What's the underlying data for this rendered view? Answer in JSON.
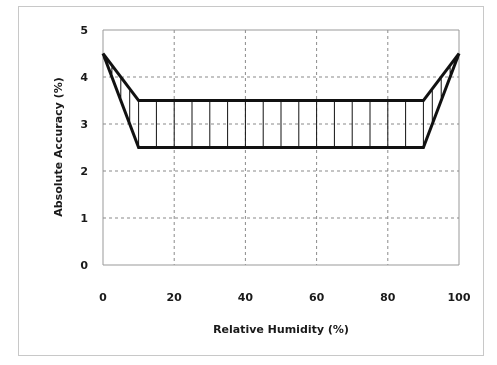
{
  "chart_data": {
    "type": "line",
    "xlabel": "Relative Humidity (%)",
    "ylabel": "Absolute Accuracy (%)",
    "xlim": [
      0,
      100
    ],
    "ylim": [
      0,
      5
    ],
    "x_ticks": [
      "0",
      "20",
      "40",
      "60",
      "80",
      "100"
    ],
    "y_ticks": [
      "0",
      "1",
      "2",
      "3",
      "4",
      "5"
    ],
    "grid": true,
    "series": [
      {
        "x": [
          0,
          10,
          90,
          100
        ],
        "y": [
          4.5,
          3.5,
          3.5,
          4.5
        ]
      },
      {
        "x": [
          0,
          10,
          90,
          100
        ],
        "y": [
          4.5,
          2.5,
          2.5,
          4.5
        ]
      }
    ],
    "hatch_x": [
      2.5,
      5,
      7.5,
      10,
      15,
      20,
      25,
      30,
      35,
      40,
      45,
      50,
      55,
      60,
      65,
      70,
      75,
      80,
      85,
      90,
      92.5,
      95,
      97.5
    ],
    "colors": {
      "line": "#111111",
      "grid": "#8a8a8a",
      "frame": "#c8c8c8"
    }
  }
}
